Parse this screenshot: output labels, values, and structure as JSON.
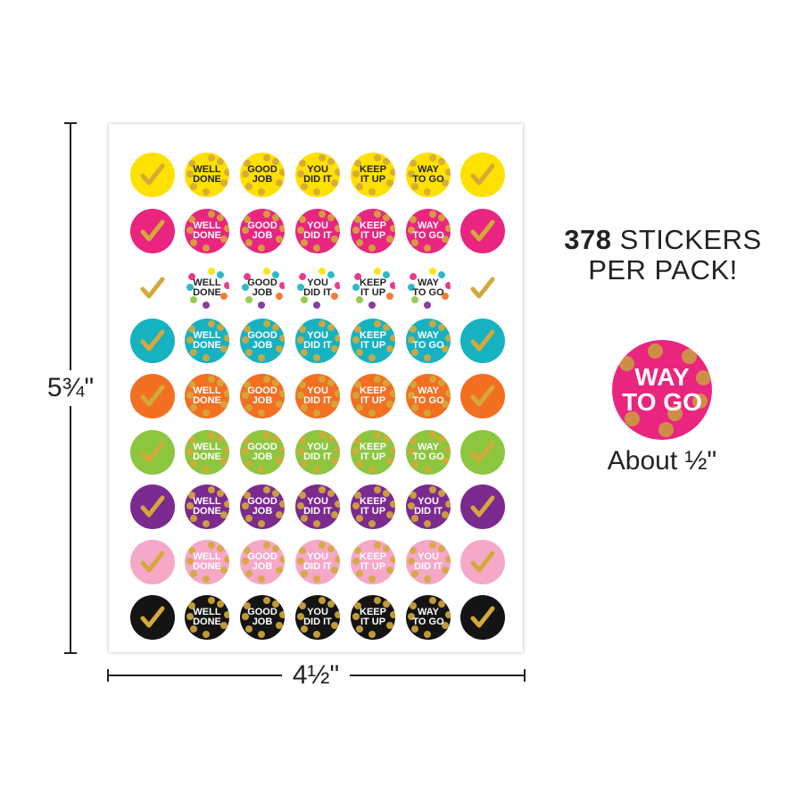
{
  "dimensions": {
    "height_label": "5¾\"",
    "width_label": "4½\""
  },
  "headline": {
    "count": "378",
    "line1_rest": " STICKERS",
    "line2": "PER PACK!"
  },
  "sample": {
    "text": "WAY\nTO GO",
    "size_label": "About ½\""
  },
  "sheet": {
    "rows": [
      {
        "color": "#ffe100",
        "text_color": "#222222",
        "stickers": [
          "✓",
          "WELL\nDONE",
          "GOOD\nJOB",
          "YOU\nDID IT",
          "KEEP\nIT UP",
          "WAY\nTO GO",
          "✓"
        ]
      },
      {
        "color": "#e9257f",
        "text_color": "#ffffff",
        "stickers": [
          "✓",
          "WELL\nDONE",
          "GOOD\nJOB",
          "YOU\nDID IT",
          "KEEP\nIT UP",
          "WAY\nTO GO",
          "✓"
        ]
      },
      {
        "color": "#ffffff",
        "text_color": "#222222",
        "stickers": [
          "✓",
          "WELL\nDONE",
          "GOOD\nJOB",
          "YOU\nDID IT",
          "KEEP\nIT UP",
          "WAY\nTO GO",
          "✓"
        ]
      },
      {
        "color": "#16b2c1",
        "text_color": "#ffffff",
        "stickers": [
          "✓",
          "WELL\nDONE",
          "GOOD\nJOB",
          "YOU\nDID IT",
          "KEEP\nIT UP",
          "WAY\nTO GO",
          "✓"
        ]
      },
      {
        "color": "#f36f21",
        "text_color": "#ffffff",
        "stickers": [
          "✓",
          "WELL\nDONE",
          "GOOD\nJOB",
          "YOU\nDID IT",
          "KEEP\nIT UP",
          "WAY\nTO GO",
          "✓"
        ]
      },
      {
        "color": "#8cc63f",
        "text_color": "#ffffff",
        "stickers": [
          "✓",
          "WELL\nDONE",
          "GOOD\nJOB",
          "YOU\nDID IT",
          "KEEP\nIT UP",
          "WAY\nTO GO",
          "✓"
        ]
      },
      {
        "color": "#7b2a90",
        "text_color": "#ffffff",
        "stickers": [
          "✓",
          "WELL\nDONE",
          "GOOD\nJOB",
          "YOU\nDID IT",
          "KEEP\nIT UP",
          "YOU\nDID IT",
          "✓"
        ]
      },
      {
        "color": "#f6a8c8",
        "text_color": "#ffffff",
        "stickers": [
          "✓",
          "WELL\nDONE",
          "GOOD\nJOB",
          "YOU\nDID IT",
          "KEEP\nIT UP",
          "YOU\nDID IT",
          "✓"
        ]
      },
      {
        "color": "#141414",
        "text_color": "#ffffff",
        "stickers": [
          "✓",
          "WELL\nDONE",
          "GOOD\nJOB",
          "YOU\nDID IT",
          "KEEP\nIT UP",
          "WAY\nTO GO",
          "✓"
        ]
      }
    ]
  }
}
